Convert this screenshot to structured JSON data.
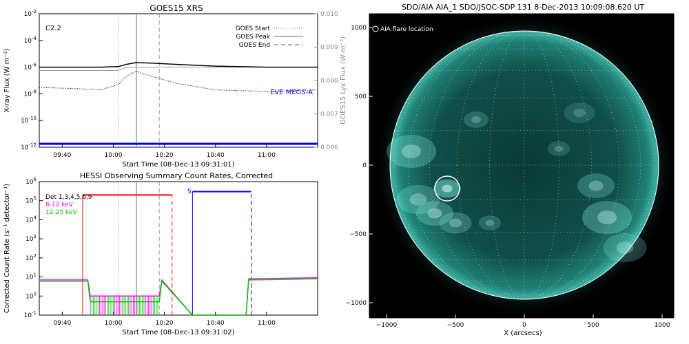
{
  "goes": {
    "title": "GOES15 XRS",
    "flare_class": "C2.2",
    "xlabel": "Start Time (08-Dec-13 09:31:01)",
    "ylabel_left": "X-ray Flux (W m⁻²)",
    "ylabel_right": "GOES15 Lyx Flux (W m⁻²)",
    "eve_label": "EVE MEGS-A",
    "legend": [
      {
        "label": "GOES Start",
        "style": "dotted",
        "color": "#999999"
      },
      {
        "label": "GOES Peak",
        "style": "solid",
        "color": "#999999"
      },
      {
        "label": "GOES End",
        "style": "dashed",
        "color": "#999999"
      }
    ],
    "left_ticks": [
      {
        "exp": -2
      },
      {
        "exp": -4
      },
      {
        "exp": -6
      },
      {
        "exp": -8
      },
      {
        "exp": -10
      },
      {
        "exp": -12
      }
    ],
    "right_ticks": [
      "0.010",
      "0.009",
      "0.008",
      "0.007",
      "0.006"
    ],
    "x_ticks": [
      "09:40",
      "10:00",
      "10:20",
      "10:40",
      "11:00"
    ],
    "colors": {
      "eve": "#0000ff",
      "long": "#000000",
      "short": "#000000",
      "lyx": "#999999"
    }
  },
  "hessi": {
    "title": "HESSI Observing Summary Count Rates, Corrected",
    "xlabel": "Start Time (08-Dec-13 09:31:02)",
    "ylabel": "Corrected Count Rate (s⁻¹ detector⁻¹)",
    "legend": [
      {
        "label": "Det 1,3,4,5,6,9",
        "color": "#000000"
      },
      {
        "label": "6-12 keV",
        "color": "#ff00ff"
      },
      {
        "label": "12-25 keV",
        "color": "#00cc00"
      }
    ],
    "s_marker": "S",
    "left_ticks": [
      {
        "exp": 6
      },
      {
        "exp": 5
      },
      {
        "exp": 4
      },
      {
        "exp": 3
      },
      {
        "exp": 2
      },
      {
        "exp": 1
      },
      {
        "exp": 0
      },
      {
        "exp": -1
      }
    ],
    "x_ticks": [
      "09:40",
      "10:00",
      "10:20",
      "10:40",
      "11:00"
    ],
    "colors": {
      "low": "#ff00ff",
      "high": "#00cc00",
      "night": "#ff0000",
      "saa": "#0000ff"
    }
  },
  "aia": {
    "title": "SDO/AIA AIA_1 SDO/JSOC-SDP 131  8-Dec-2013 10:09:08.620 UT",
    "legend_label": "AIA flare location",
    "xlabel": "X (arcsecs)",
    "x_ticks": [
      "−1000",
      "−500",
      "0",
      "500",
      "1000"
    ],
    "y_ticks": [
      "1000",
      "500",
      "0",
      "−500",
      "−1000"
    ],
    "flare_location": {
      "x": -560,
      "y": -170
    },
    "limb_radius": 975,
    "colors": {
      "disk": "#0e4a45",
      "bright": "#7fe8dc",
      "background": "#000000"
    }
  },
  "chart_data": [
    {
      "type": "line",
      "title": "GOES15 XRS",
      "xlabel": "Start Time (08-Dec-13 09:31:01)",
      "ylabel": "X-ray Flux (W m⁻²)",
      "y_scale": "log",
      "ylim": [
        1e-12,
        0.01
      ],
      "xlim": [
        "09:31",
        "11:20"
      ],
      "x": [
        "09:31",
        "09:45",
        "09:55",
        "10:02",
        "10:05",
        "10:09",
        "10:15",
        "10:25",
        "10:40",
        "11:00",
        "11:20"
      ],
      "series": [
        {
          "name": "",
          "values": [
            1e-06,
            1e-06,
            1e-06,
            1.1e-06,
            1.6e-06,
            2.2e-06,
            2e-06,
            1.6e-06,
            1.2e-06,
            1e-06,
            1e-06
          ]
        },
        {
          "name": "",
          "values": [
            3e-08,
            2.5e-08,
            2e-08,
            5e-08,
            2e-07,
            5e-07,
            2e-07,
            6e-08,
            2e-08,
            1.5e-08,
            2e-08
          ]
        },
        {
          "name": "EVE MEGS-A",
          "values": [
            1e-12,
            1e-12,
            1e-12,
            1e-12,
            1e-12,
            1e-12,
            1e-12,
            1e-12,
            1e-12,
            1e-12,
            1e-12
          ]
        }
      ],
      "right_axis": {
        "label": "GOES15 Lyx Flux (W m⁻²)",
        "ylim": [
          0.006,
          0.01
        ]
      },
      "lyx_values": [
        0.0083,
        0.0083,
        0.0083,
        0.0083,
        0.0084,
        0.0084,
        0.0084,
        0.0084,
        0.0084,
        0.0084,
        0.0084
      ],
      "markers": {
        "GOES Start": "10:02",
        "GOES Peak": "10:09",
        "GOES End": "10:18"
      },
      "annotation": "C2.2"
    },
    {
      "type": "line",
      "title": "HESSI Observing Summary Count Rates, Corrected",
      "xlabel": "Start Time (08-Dec-13 09:31:02)",
      "ylabel": "Corrected Count Rate (s⁻¹ detector⁻¹)",
      "y_scale": "log",
      "ylim": [
        0.1,
        1000000.0
      ],
      "xlim": [
        "09:31",
        "11:20"
      ],
      "x": [
        "09:31",
        "09:50",
        "09:51",
        "10:18",
        "10:19",
        "10:31",
        "10:52",
        "10:53",
        "11:20"
      ],
      "series": [
        {
          "name": "6-12 keV",
          "values": [
            7,
            7,
            1,
            1,
            7,
            0.1,
            0.1,
            8,
            9
          ]
        },
        {
          "name": "12-25 keV",
          "values": [
            6,
            6,
            0.5,
            0.5,
            6,
            0.1,
            0.1,
            7,
            8
          ]
        }
      ],
      "night_intervals": [
        [
          "09:48",
          "10:23"
        ]
      ],
      "saa_intervals": [
        [
          "10:31",
          "10:54"
        ]
      ],
      "markers": {
        "GOES Start": "10:02",
        "GOES Peak": "10:09",
        "GOES End": "10:18"
      }
    }
  ]
}
